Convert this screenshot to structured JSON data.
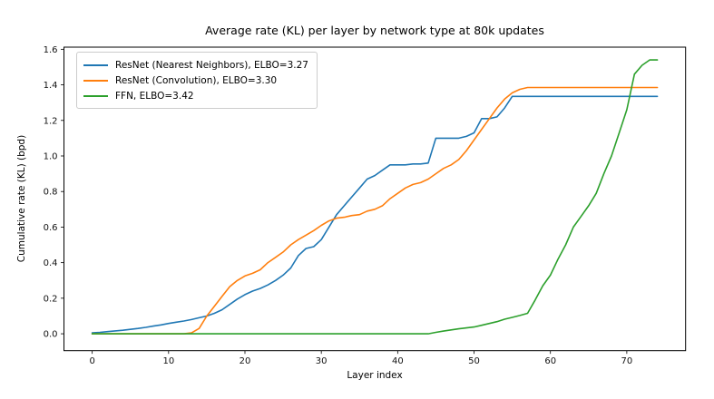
{
  "chart_data": {
    "type": "line",
    "title": "Average rate (KL) per layer by network type at 80k updates",
    "xlabel": "Layer index",
    "ylabel": "Cumulative rate (KL) (bpd)",
    "xlim": [
      -3.7,
      77.7
    ],
    "ylim": [
      -0.095,
      1.612
    ],
    "xticks": [
      0,
      10,
      20,
      30,
      40,
      50,
      60,
      70
    ],
    "yticks": [
      0.0,
      0.2,
      0.4,
      0.6,
      0.8,
      1.0,
      1.2,
      1.4,
      1.6
    ],
    "grid": false,
    "legend_position": "upper left",
    "x": [
      0,
      1,
      2,
      3,
      4,
      5,
      6,
      7,
      8,
      9,
      10,
      11,
      12,
      13,
      14,
      15,
      16,
      17,
      18,
      19,
      20,
      21,
      22,
      23,
      24,
      25,
      26,
      27,
      28,
      29,
      30,
      31,
      32,
      33,
      34,
      35,
      36,
      37,
      38,
      39,
      40,
      41,
      42,
      43,
      44,
      45,
      46,
      47,
      48,
      49,
      50,
      51,
      52,
      53,
      54,
      55,
      56,
      57,
      58,
      59,
      60,
      61,
      62,
      63,
      64,
      65,
      66,
      67,
      68,
      69,
      70,
      71,
      72,
      73,
      74
    ],
    "series": [
      {
        "id": "resnet-nearest-neighbors",
        "label": "ResNet (Nearest Neighbors), ELBO=3.27",
        "color": "#1f77b4",
        "values": [
          0.005,
          0.008,
          0.012,
          0.016,
          0.02,
          0.025,
          0.03,
          0.036,
          0.043,
          0.05,
          0.058,
          0.065,
          0.072,
          0.08,
          0.09,
          0.1,
          0.115,
          0.135,
          0.165,
          0.195,
          0.22,
          0.24,
          0.255,
          0.275,
          0.3,
          0.33,
          0.37,
          0.44,
          0.48,
          0.49,
          0.53,
          0.6,
          0.67,
          0.72,
          0.77,
          0.82,
          0.87,
          0.89,
          0.92,
          0.95,
          0.95,
          0.95,
          0.955,
          0.955,
          0.96,
          1.1,
          1.1,
          1.1,
          1.1,
          1.11,
          1.13,
          1.21,
          1.21,
          1.22,
          1.27,
          1.335,
          1.335,
          1.335,
          1.335,
          1.335,
          1.335,
          1.335,
          1.335,
          1.335,
          1.335,
          1.335,
          1.335,
          1.335,
          1.335,
          1.335,
          1.335,
          1.335,
          1.335,
          1.335,
          1.335
        ]
      },
      {
        "id": "resnet-convolution",
        "label": "ResNet (Convolution), ELBO=3.30",
        "color": "#ff7f0e",
        "values": [
          0,
          0,
          0,
          0,
          0,
          0,
          0,
          0,
          0,
          0,
          0,
          0,
          0,
          0.005,
          0.03,
          0.1,
          0.155,
          0.21,
          0.265,
          0.3,
          0.325,
          0.34,
          0.36,
          0.4,
          0.43,
          0.46,
          0.5,
          0.53,
          0.555,
          0.58,
          0.61,
          0.635,
          0.65,
          0.655,
          0.665,
          0.67,
          0.69,
          0.7,
          0.72,
          0.76,
          0.79,
          0.82,
          0.84,
          0.85,
          0.87,
          0.9,
          0.93,
          0.95,
          0.98,
          1.03,
          1.09,
          1.15,
          1.21,
          1.27,
          1.32,
          1.355,
          1.375,
          1.385,
          1.385,
          1.385,
          1.385,
          1.385,
          1.385,
          1.385,
          1.385,
          1.385,
          1.385,
          1.385,
          1.385,
          1.385,
          1.385,
          1.385,
          1.385,
          1.385,
          1.385
        ]
      },
      {
        "id": "ffn",
        "label": "FFN, ELBO=3.42",
        "color": "#2ca02c",
        "values": [
          0,
          0,
          0,
          0,
          0,
          0,
          0,
          0,
          0,
          0,
          0,
          0,
          0,
          0,
          0,
          0,
          0,
          0,
          0,
          0,
          0,
          0,
          0,
          0,
          0,
          0,
          0,
          0,
          0,
          0,
          0,
          0,
          0,
          0,
          0,
          0,
          0,
          0,
          0,
          0,
          0,
          0,
          0,
          0,
          0,
          0.008,
          0.015,
          0.022,
          0.028,
          0.033,
          0.038,
          0.048,
          0.058,
          0.068,
          0.082,
          0.092,
          0.103,
          0.115,
          0.19,
          0.27,
          0.33,
          0.42,
          0.5,
          0.6,
          0.66,
          0.72,
          0.79,
          0.9,
          1.0,
          1.13,
          1.26,
          1.46,
          1.51,
          1.54,
          1.54
        ]
      }
    ]
  }
}
